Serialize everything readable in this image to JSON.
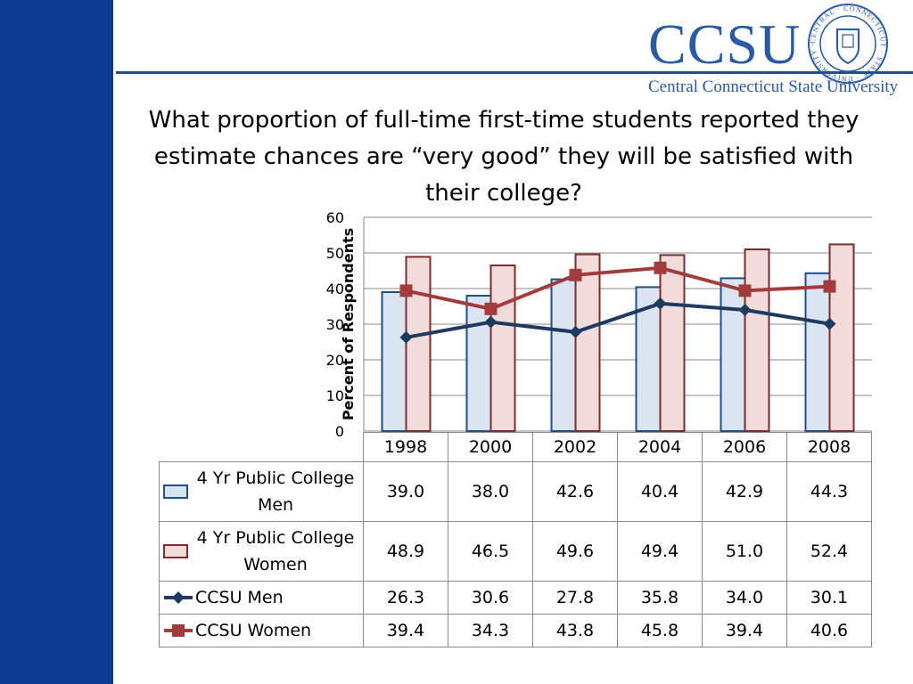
{
  "header": {
    "logo": "CCSU",
    "university_name": "Central Connecticut State University",
    "seal_text": "CENTRAL · CONNECTICUT · STATE · UNIVERSITY · 1849"
  },
  "colors": {
    "sidebar": "#0d3a93",
    "men_bar_fill": "#dbe5f1",
    "men_bar_stroke": "#1f4e8a",
    "women_bar_fill": "#f2dcdb",
    "women_bar_stroke": "#7b2c2c",
    "ccsu_men_line": "#1f3a60",
    "ccsu_women_line": "#a23b3b"
  },
  "slide": {
    "title": "What proportion of full-time first-time students reported they estimate chances are “very good” they will be satisfied with their college?"
  },
  "chart_data": {
    "type": "bar",
    "title": "What proportion of full-time first-time students reported they estimate chances are “very good” they will be satisfied with their college?",
    "ylabel": "Percent of Respondents",
    "xlabel": "",
    "ylim": [
      0,
      60
    ],
    "yticks": [
      "0",
      "10",
      "20",
      "30",
      "40",
      "50",
      "60"
    ],
    "grid": true,
    "legend": "data-table",
    "categories": [
      "1998",
      "2000",
      "2002",
      "2004",
      "2006",
      "2008"
    ],
    "series": [
      {
        "name": "4 Yr Public College Men",
        "kind": "bar",
        "values": [
          39.0,
          38.0,
          42.6,
          40.4,
          42.9,
          44.3
        ],
        "display": [
          "39.0",
          "38.0",
          "42.6",
          "40.4",
          "42.9",
          "44.3"
        ]
      },
      {
        "name": "4 Yr Public College Women",
        "kind": "bar",
        "values": [
          48.9,
          46.5,
          49.6,
          49.4,
          51.0,
          52.4
        ],
        "display": [
          "48.9",
          "46.5",
          "49.6",
          "49.4",
          "51.0",
          "52.4"
        ]
      },
      {
        "name": "CCSU Men",
        "kind": "line",
        "marker": "diamond",
        "values": [
          26.3,
          30.6,
          27.8,
          35.8,
          34.0,
          30.1
        ],
        "display": [
          "26.3",
          "30.6",
          "27.8",
          "35.8",
          "34.0",
          "30.1"
        ]
      },
      {
        "name": "CCSU Women",
        "kind": "line",
        "marker": "square",
        "values": [
          39.4,
          34.3,
          43.8,
          45.8,
          39.4,
          40.6
        ],
        "display": [
          "39.4",
          "34.3",
          "43.8",
          "45.8",
          "39.4",
          "40.6"
        ]
      }
    ]
  }
}
